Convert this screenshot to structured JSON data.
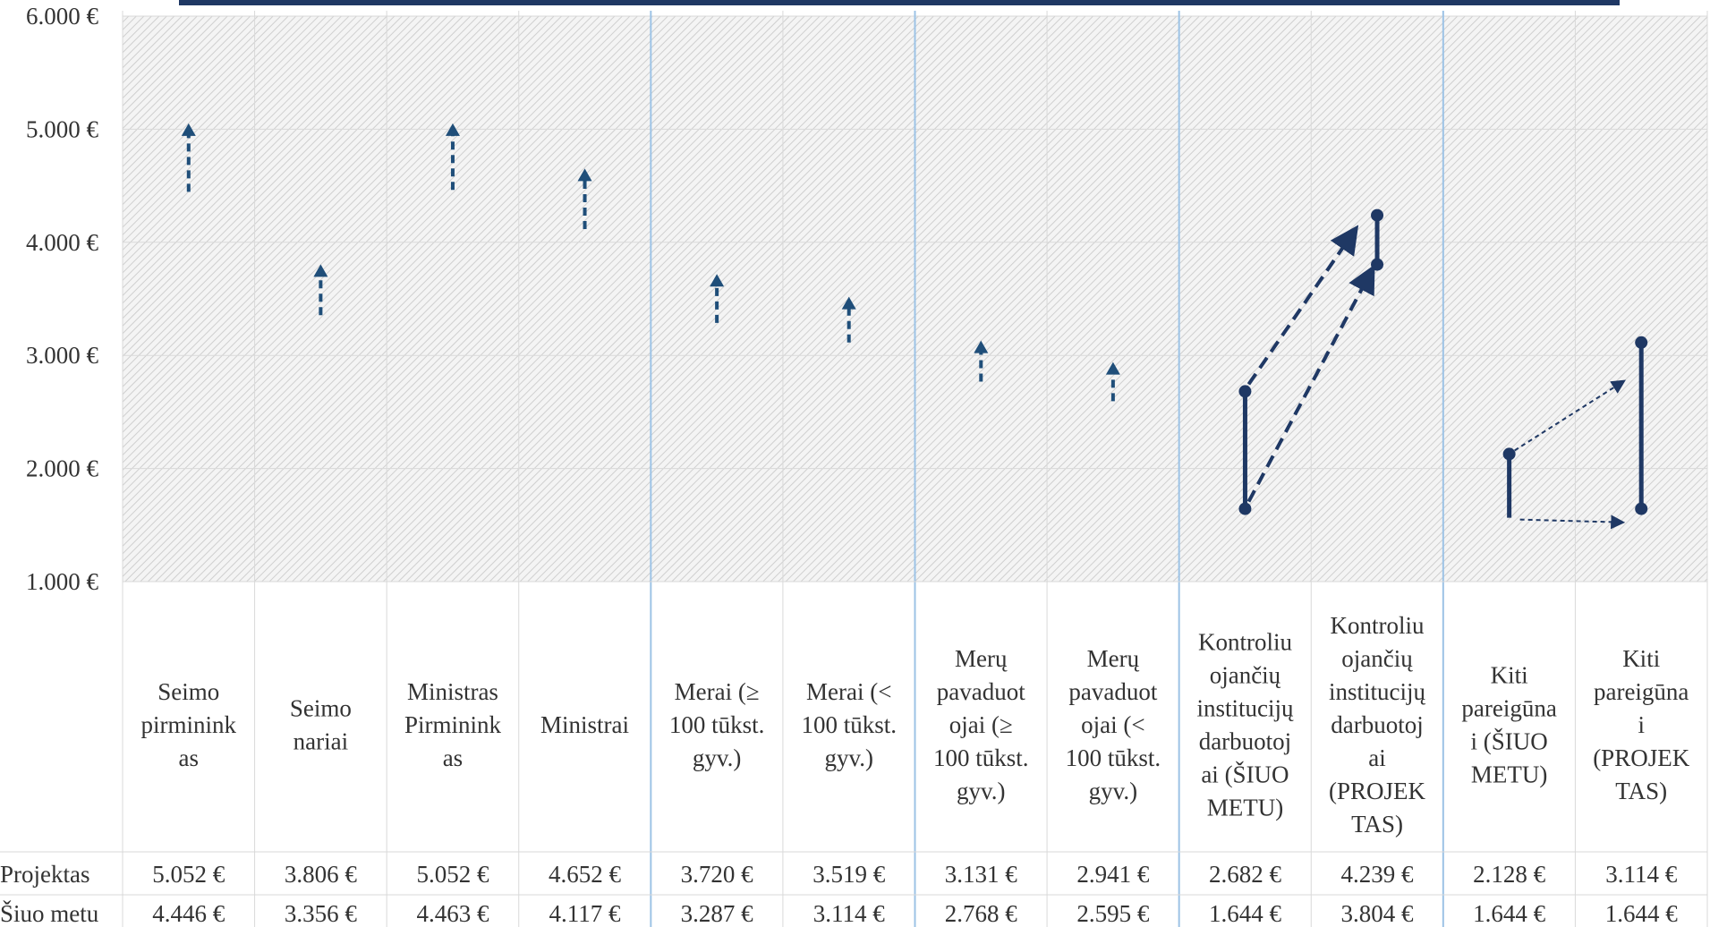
{
  "chart_data": {
    "type": "table",
    "title": "",
    "xlabel": "",
    "ylabel": "",
    "ylim": [
      1000,
      6000
    ],
    "yticks": [
      "1.000 €",
      "2.000 €",
      "3.000 €",
      "4.000 €",
      "5.000 €",
      "6.000 €"
    ],
    "categories": [
      [
        "Seimo",
        "pirminink",
        "as"
      ],
      [
        "Seimo",
        "nariai"
      ],
      [
        "Ministras",
        "Pirminink",
        "as"
      ],
      [
        "Ministrai"
      ],
      [
        "Merai (≥",
        "100 tūkst.",
        "gyv.)"
      ],
      [
        "Merai (<",
        "100 tūkst.",
        "gyv.)"
      ],
      [
        "Merų",
        "pavaduot",
        "ojai (≥",
        "100 tūkst.",
        "gyv.)"
      ],
      [
        "Merų",
        "pavaduot",
        "ojai (<",
        "100 tūkst.",
        "gyv.)"
      ],
      [
        "Kontroliu",
        "ojančių",
        "institucijų",
        "darbuotoj",
        "ai (ŠIUO",
        "METU)"
      ],
      [
        "Kontroliu",
        "ojančių",
        "institucijų",
        "darbuotoj",
        "ai",
        "(PROJEK",
        "TAS)"
      ],
      [
        "Kiti",
        "pareigūna",
        "i (ŠIUO",
        "METU)"
      ],
      [
        "Kiti",
        "pareigūna",
        "i",
        "(PROJEK",
        "TAS)"
      ]
    ],
    "group_separators_after": [
      3,
      5,
      7,
      9
    ],
    "series": [
      {
        "name": "Projektas",
        "values": [
          5052,
          3806,
          5052,
          4652,
          3720,
          3519,
          3131,
          2941,
          2682,
          4239,
          2128,
          3114
        ],
        "labels": [
          "5.052 €",
          "3.806 €",
          "5.052 €",
          "4.652 €",
          "3.720 €",
          "3.519 €",
          "3.131 €",
          "2.941 €",
          "2.682 €",
          "4.239 €",
          "2.128 €",
          "3.114 €"
        ]
      },
      {
        "name": "Šiuo metu",
        "values": [
          4446,
          3356,
          4463,
          4117,
          3287,
          3114,
          2768,
          2595,
          1644,
          3804,
          1644,
          1644
        ],
        "labels": [
          "4.446 €",
          "3.356 €",
          "4.463 €",
          "4.117 €",
          "3.287 €",
          "3.114 €",
          "2.768 €",
          "2.595 €",
          "1.644 €",
          "3.804 €",
          "1.644 €",
          "1.644 €"
        ]
      }
    ],
    "colors": {
      "arrow": "#1f4e79",
      "dark": "#1f3864",
      "hatch": "#d0d0d0",
      "grid": "#d9d9d9",
      "separator": "#9dc3e6",
      "topbar": "#1f3864"
    }
  }
}
